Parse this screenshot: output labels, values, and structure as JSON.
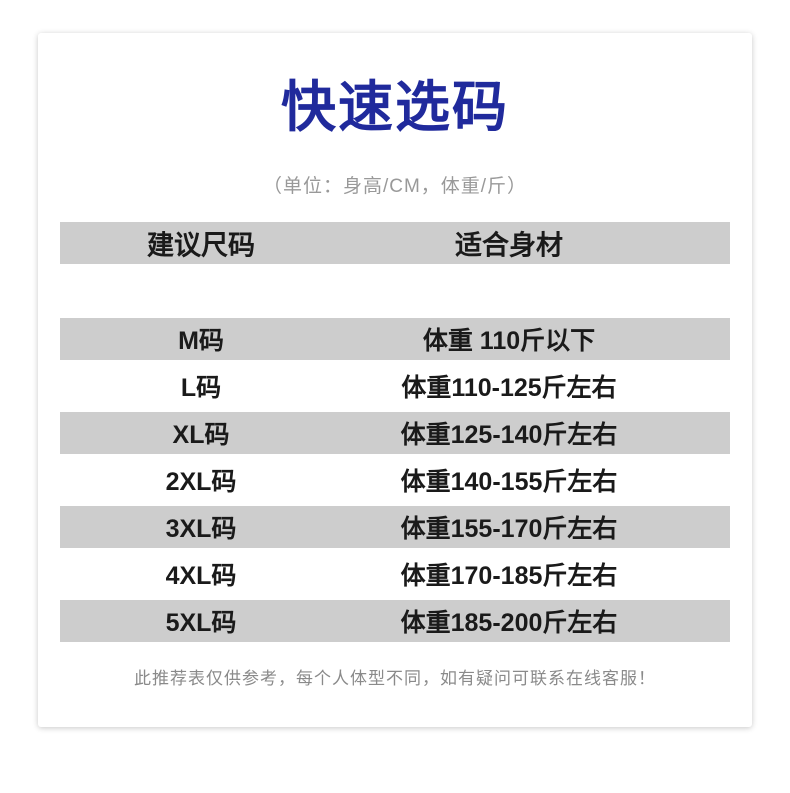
{
  "page": {
    "title": "快速选码",
    "units_note": "（单位：身高/CM，体重/斤）",
    "footer_note": "此推荐表仅供参考，每个人体型不同，如有疑问可联系在线客服！"
  },
  "colors": {
    "title_blue": "#202a9c",
    "band_gray": "#cdcdcd",
    "text_dark": "#1a1a1a",
    "note_gray": "#999999",
    "footer_gray": "#8a8a8a"
  },
  "table": {
    "header": {
      "size_col": "建议尺码",
      "fit_col": "适合身材"
    },
    "rows": [
      {
        "size": "M码",
        "fit": "体重 110斤以下"
      },
      {
        "size": "L码",
        "fit": "体重110-125斤左右"
      },
      {
        "size": "XL码",
        "fit": "体重125-140斤左右"
      },
      {
        "size": "2XL码",
        "fit": "体重140-155斤左右"
      },
      {
        "size": "3XL码",
        "fit": "体重155-170斤左右"
      },
      {
        "size": "4XL码",
        "fit": "体重170-185斤左右"
      },
      {
        "size": "5XL码",
        "fit": "体重185-200斤左右"
      }
    ]
  }
}
